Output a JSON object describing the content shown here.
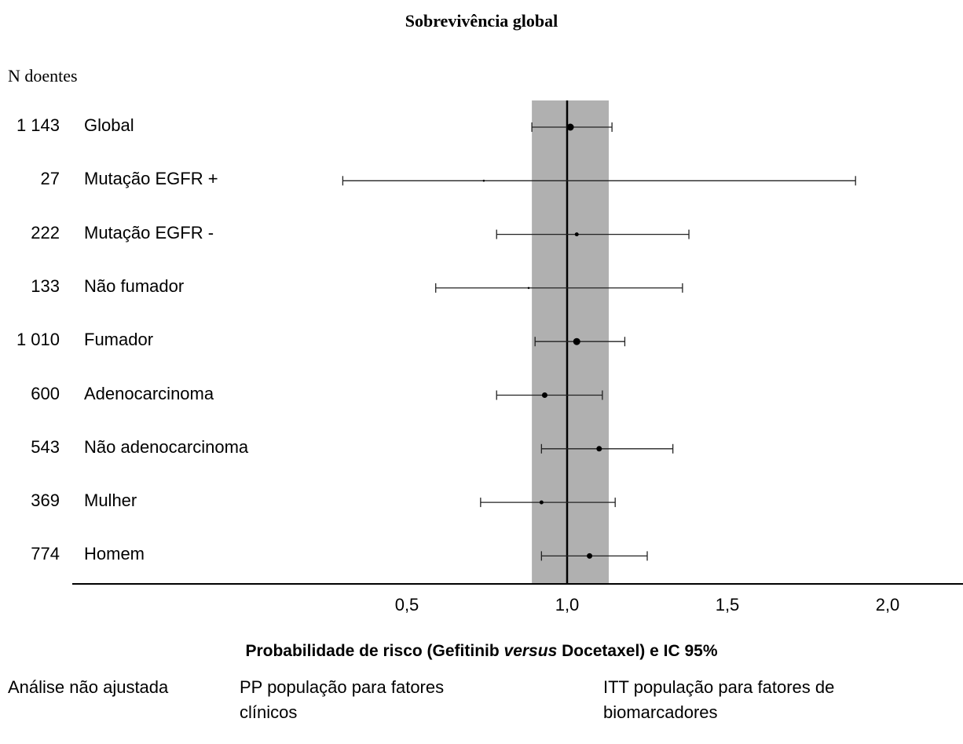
{
  "chart_data": {
    "type": "forest",
    "title": "Sobrevivência global",
    "n_header": "N doentes",
    "xlabel": {
      "before": "Probabilidade de risco (Gefitinib ",
      "italic": "versus",
      "after": " Docetaxel) e IC 95%"
    },
    "x_ticks": [
      {
        "value": 0.5,
        "label": "0,5"
      },
      {
        "value": 1.0,
        "label": "1,0"
      },
      {
        "value": 1.5,
        "label": "1,5"
      },
      {
        "value": 2.0,
        "label": "2,0"
      }
    ],
    "xlim": [
      0.0,
      2.2
    ],
    "reference_line": 1.0,
    "shaded_band": [
      0.89,
      1.13
    ],
    "rows": [
      {
        "n": "1 143",
        "label": "Global",
        "hr": 1.01,
        "ci": [
          0.89,
          1.14
        ],
        "marker": "large"
      },
      {
        "n": "27",
        "label": "Mutação EGFR +",
        "hr": 0.74,
        "ci": [
          0.3,
          1.9
        ],
        "marker": "tiny"
      },
      {
        "n": "222",
        "label": "Mutação EGFR -",
        "hr": 1.03,
        "ci": [
          0.78,
          1.38
        ],
        "marker": "small"
      },
      {
        "n": "133",
        "label": "Não fumador",
        "hr": 0.88,
        "ci": [
          0.59,
          1.36
        ],
        "marker": "tiny"
      },
      {
        "n": "1 010",
        "label": "Fumador",
        "hr": 1.03,
        "ci": [
          0.9,
          1.18
        ],
        "marker": "large"
      },
      {
        "n": "600",
        "label": "Adenocarcinoma",
        "hr": 0.93,
        "ci": [
          0.78,
          1.11
        ],
        "marker": "medium"
      },
      {
        "n": "543",
        "label": "Não adenocarcinoma",
        "hr": 1.1,
        "ci": [
          0.92,
          1.33
        ],
        "marker": "medium"
      },
      {
        "n": "369",
        "label": "Mulher",
        "hr": 0.92,
        "ci": [
          0.73,
          1.15
        ],
        "marker": "small"
      },
      {
        "n": "774",
        "label": "Homem",
        "hr": 1.07,
        "ci": [
          0.92,
          1.25
        ],
        "marker": "medium"
      }
    ]
  },
  "legend": [
    {
      "label": "Análise não ajustada"
    },
    {
      "label": "PP população para fatores clínicos"
    },
    {
      "label": "ITT população para fatores de biomarcadores"
    }
  ]
}
